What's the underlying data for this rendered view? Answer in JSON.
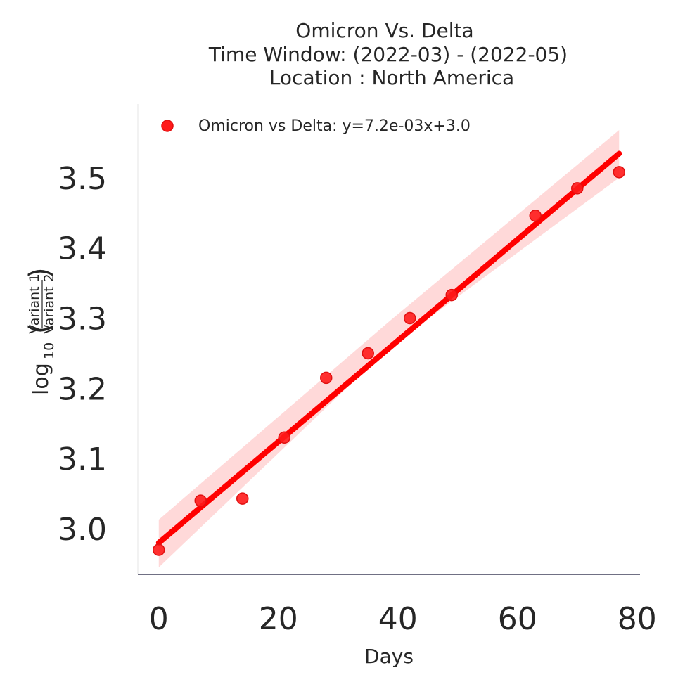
{
  "chart_data": {
    "type": "scatter",
    "title_lines": [
      "Omicron Vs. Delta",
      "Time Window: (2022-03) - (2022-05)",
      "Location : North America"
    ],
    "xlabel": "Days",
    "ylabel": {
      "base": "log",
      "subscript": "10",
      "numerator": "Variant 1",
      "denominator": "Variant 2"
    },
    "xlim": [
      -3.5,
      80.5
    ],
    "ylim": [
      2.935,
      3.605
    ],
    "xticks": [
      0,
      20,
      40,
      60,
      80
    ],
    "xtick_labels": [
      "0",
      "20",
      "40",
      "60",
      "80"
    ],
    "yticks": [
      3.0,
      3.1,
      3.2,
      3.3,
      3.4,
      3.5
    ],
    "ytick_labels": [
      "3.0",
      "3.1",
      "3.2",
      "3.3",
      "3.4",
      "3.5"
    ],
    "grid": false,
    "legend_position": "top-left",
    "series": [
      {
        "name": "Omicron vs Delta: y=7.2e-03x+3.0",
        "color": "#ff0000",
        "x": [
          0,
          7,
          14,
          21,
          28,
          35,
          42,
          49,
          63,
          70,
          77
        ],
        "y": [
          2.97,
          3.04,
          3.043,
          3.13,
          3.215,
          3.25,
          3.3,
          3.333,
          3.446,
          3.485,
          3.508
        ],
        "fit": {
          "slope": 0.0072,
          "intercept": 2.98,
          "x_range": [
            0,
            77
          ]
        },
        "ci_band": {
          "x": [
            0,
            38.5,
            77
          ],
          "lower": [
            2.945,
            3.258,
            3.5
          ],
          "upper": [
            3.013,
            3.295,
            3.568
          ]
        }
      }
    ]
  }
}
